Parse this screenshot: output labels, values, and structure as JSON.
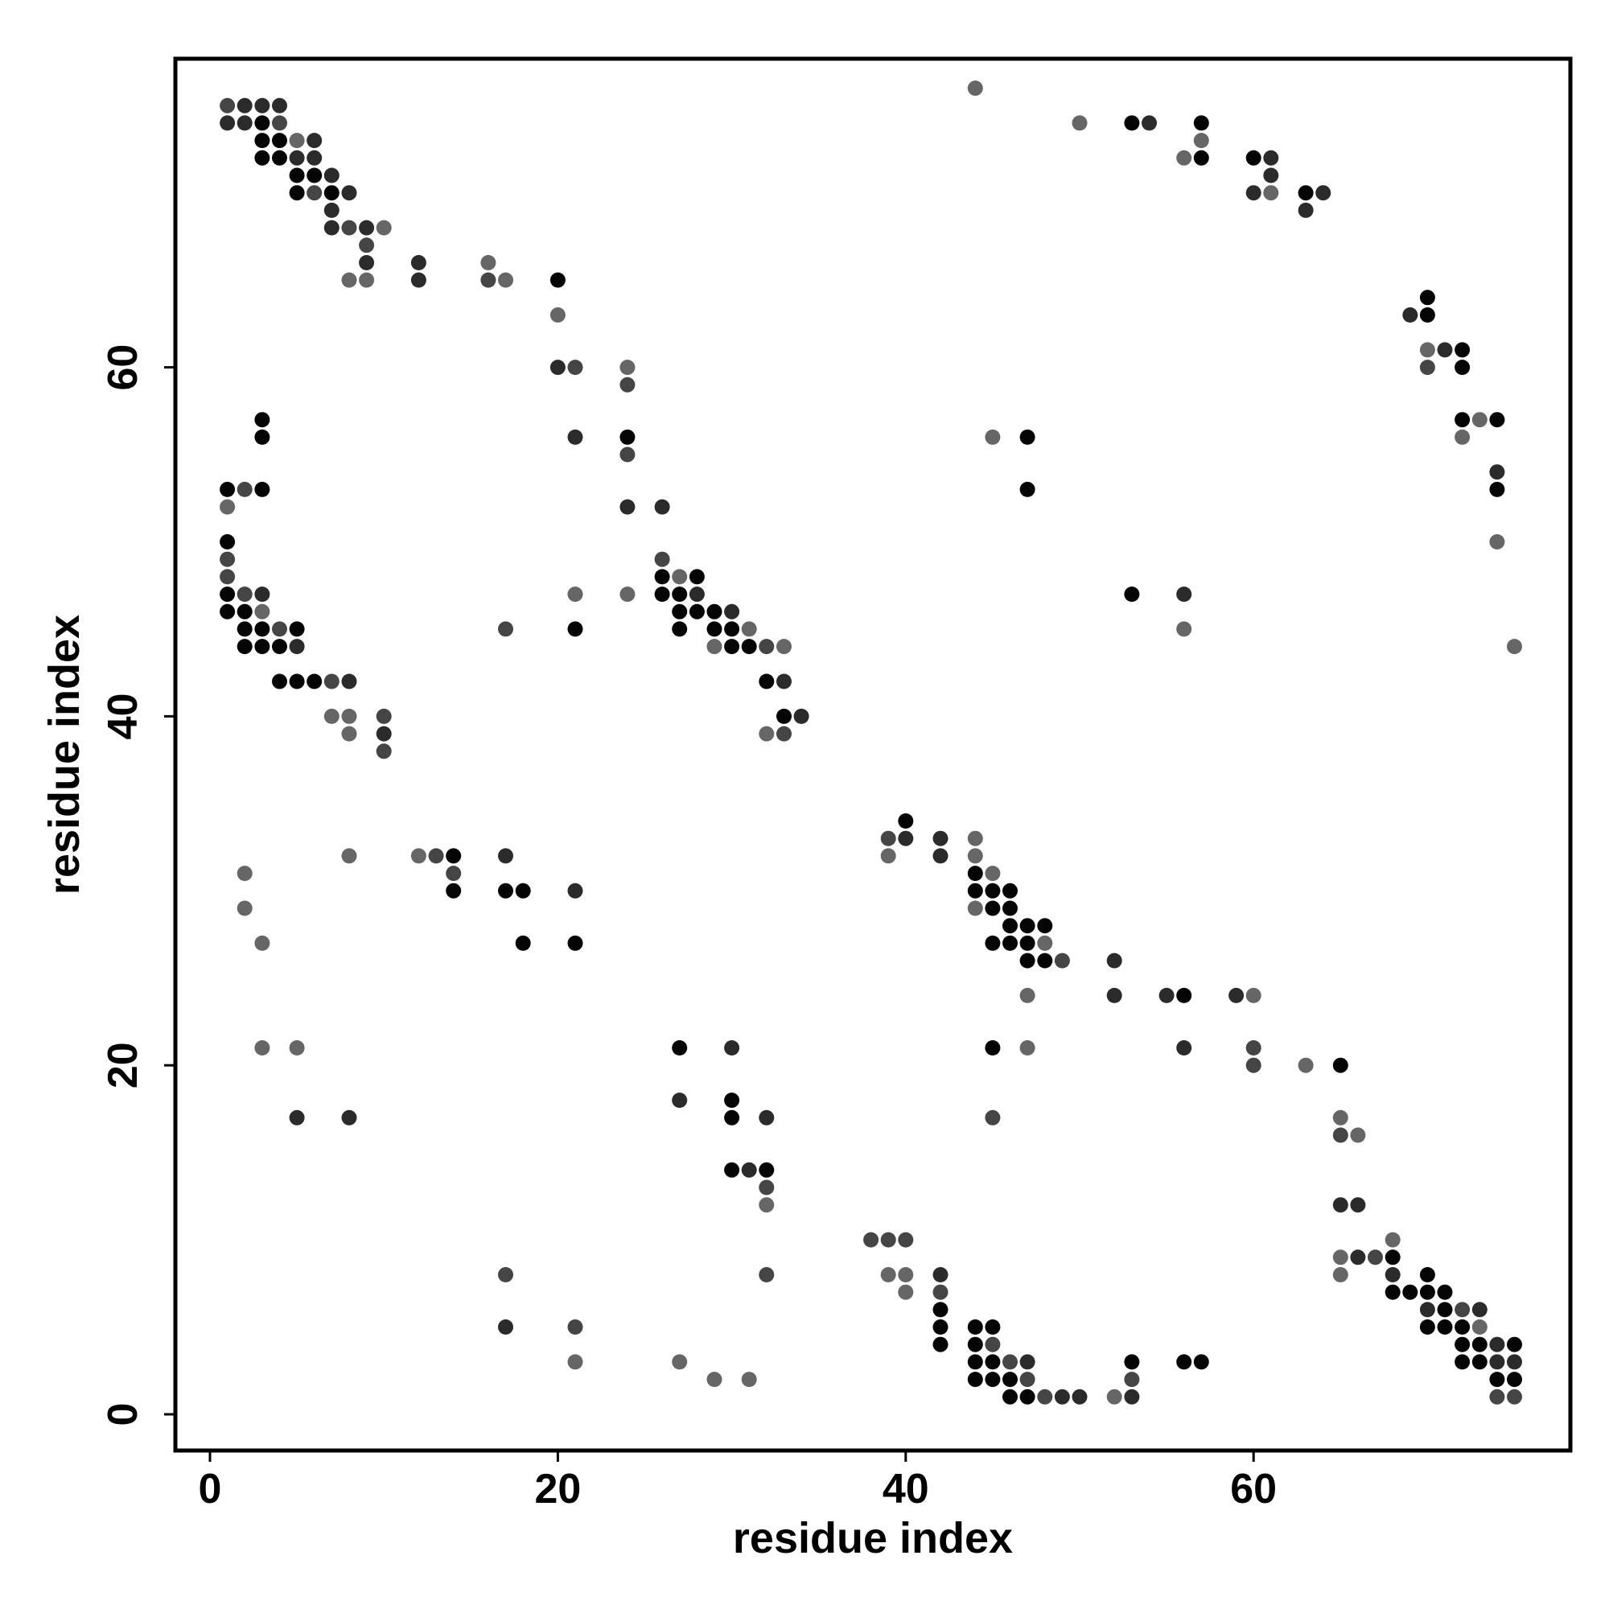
{
  "chart_data": {
    "type": "scatter",
    "title": "",
    "xlabel": "residue index",
    "ylabel": "residue index",
    "xlim": [
      -2,
      78
    ],
    "ylim": [
      -2,
      78
    ],
    "xticks": [
      0,
      20,
      40,
      60
    ],
    "yticks": [
      0,
      20,
      40,
      60
    ],
    "grid": false,
    "legend": "none",
    "marker": "filled circle",
    "shade_levels": {
      "1": "#050505",
      "2": "#2b2b2b",
      "3": "#454545",
      "4": "#666666"
    },
    "points": [
      [
        1,
        75,
        3
      ],
      [
        2,
        75,
        2
      ],
      [
        3,
        75,
        2
      ],
      [
        4,
        75,
        2
      ],
      [
        1,
        74,
        2
      ],
      [
        2,
        74,
        2
      ],
      [
        3,
        74,
        1
      ],
      [
        4,
        74,
        3
      ],
      [
        3,
        73,
        1
      ],
      [
        4,
        73,
        1
      ],
      [
        5,
        73,
        4
      ],
      [
        6,
        73,
        2
      ],
      [
        3,
        72,
        1
      ],
      [
        4,
        72,
        1
      ],
      [
        5,
        72,
        2
      ],
      [
        6,
        72,
        2
      ],
      [
        5,
        71,
        1
      ],
      [
        6,
        71,
        1
      ],
      [
        7,
        71,
        2
      ],
      [
        5,
        70,
        1
      ],
      [
        6,
        70,
        3
      ],
      [
        7,
        70,
        1
      ],
      [
        8,
        70,
        2
      ],
      [
        7,
        69,
        2
      ],
      [
        7,
        68,
        2
      ],
      [
        8,
        68,
        3
      ],
      [
        9,
        68,
        2
      ],
      [
        10,
        68,
        4
      ],
      [
        9,
        67,
        3
      ],
      [
        9,
        66,
        2
      ],
      [
        8,
        65,
        4
      ],
      [
        9,
        65,
        4
      ],
      [
        12,
        66,
        2
      ],
      [
        12,
        65,
        2
      ],
      [
        16,
        66,
        4
      ],
      [
        16,
        65,
        3
      ],
      [
        17,
        65,
        4
      ],
      [
        20,
        65,
        1
      ],
      [
        20,
        63,
        4
      ],
      [
        20,
        60,
        2
      ],
      [
        21,
        60,
        3
      ],
      [
        21,
        56,
        2
      ],
      [
        24,
        60,
        4
      ],
      [
        24,
        59,
        3
      ],
      [
        24,
        56,
        1
      ],
      [
        24,
        55,
        3
      ],
      [
        24,
        52,
        2
      ],
      [
        26,
        52,
        2
      ],
      [
        24,
        47,
        4
      ],
      [
        21,
        47,
        4
      ],
      [
        21,
        45,
        1
      ],
      [
        17,
        45,
        3
      ],
      [
        44,
        76,
        4
      ],
      [
        50,
        74,
        4
      ],
      [
        53,
        74,
        1
      ],
      [
        54,
        74,
        2
      ],
      [
        57,
        74,
        1
      ],
      [
        57,
        73,
        4
      ],
      [
        56,
        72,
        4
      ],
      [
        57,
        72,
        1
      ],
      [
        60,
        72,
        1
      ],
      [
        61,
        72,
        2
      ],
      [
        61,
        71,
        2
      ],
      [
        60,
        70,
        2
      ],
      [
        61,
        70,
        4
      ],
      [
        63,
        70,
        1
      ],
      [
        64,
        70,
        2
      ],
      [
        63,
        69,
        2
      ],
      [
        69,
        63,
        2
      ],
      [
        70,
        63,
        1
      ],
      [
        70,
        64,
        1
      ],
      [
        70,
        61,
        4
      ],
      [
        71,
        61,
        2
      ],
      [
        72,
        61,
        1
      ],
      [
        70,
        60,
        3
      ],
      [
        72,
        60,
        1
      ],
      [
        72,
        57,
        1
      ],
      [
        73,
        57,
        4
      ],
      [
        74,
        57,
        1
      ],
      [
        72,
        56,
        4
      ],
      [
        74,
        54,
        2
      ],
      [
        74,
        53,
        1
      ],
      [
        74,
        50,
        4
      ],
      [
        75,
        44,
        4
      ],
      [
        45,
        56,
        4
      ],
      [
        47,
        56,
        1
      ],
      [
        47,
        53,
        1
      ],
      [
        53,
        47,
        1
      ],
      [
        56,
        47,
        2
      ],
      [
        56,
        45,
        4
      ],
      [
        3,
        57,
        1
      ],
      [
        3,
        56,
        1
      ],
      [
        1,
        53,
        1
      ],
      [
        2,
        53,
        3
      ],
      [
        3,
        53,
        1
      ],
      [
        1,
        52,
        4
      ],
      [
        1,
        50,
        1
      ],
      [
        1,
        49,
        3
      ],
      [
        1,
        48,
        3
      ],
      [
        1,
        47,
        1
      ],
      [
        2,
        47,
        3
      ],
      [
        3,
        47,
        2
      ],
      [
        1,
        46,
        1
      ],
      [
        2,
        46,
        1
      ],
      [
        3,
        46,
        4
      ],
      [
        2,
        45,
        1
      ],
      [
        3,
        45,
        1
      ],
      [
        4,
        45,
        3
      ],
      [
        5,
        45,
        1
      ],
      [
        2,
        44,
        1
      ],
      [
        3,
        44,
        1
      ],
      [
        4,
        44,
        1
      ],
      [
        5,
        44,
        2
      ],
      [
        4,
        42,
        1
      ],
      [
        5,
        42,
        1
      ],
      [
        6,
        42,
        1
      ],
      [
        7,
        42,
        3
      ],
      [
        8,
        42,
        2
      ],
      [
        7,
        40,
        4
      ],
      [
        8,
        40,
        4
      ],
      [
        10,
        40,
        3
      ],
      [
        8,
        39,
        4
      ],
      [
        10,
        39,
        2
      ],
      [
        10,
        38,
        3
      ],
      [
        26,
        49,
        3
      ],
      [
        26,
        48,
        1
      ],
      [
        27,
        48,
        4
      ],
      [
        28,
        48,
        1
      ],
      [
        26,
        47,
        1
      ],
      [
        27,
        47,
        1
      ],
      [
        28,
        47,
        2
      ],
      [
        27,
        46,
        1
      ],
      [
        28,
        46,
        1
      ],
      [
        29,
        46,
        1
      ],
      [
        30,
        46,
        2
      ],
      [
        27,
        45,
        1
      ],
      [
        29,
        45,
        1
      ],
      [
        30,
        45,
        1
      ],
      [
        31,
        45,
        4
      ],
      [
        29,
        44,
        4
      ],
      [
        30,
        44,
        1
      ],
      [
        31,
        44,
        1
      ],
      [
        32,
        44,
        3
      ],
      [
        33,
        44,
        4
      ],
      [
        32,
        42,
        1
      ],
      [
        33,
        42,
        2
      ],
      [
        33,
        40,
        1
      ],
      [
        34,
        40,
        2
      ],
      [
        32,
        39,
        4
      ],
      [
        33,
        39,
        3
      ],
      [
        39,
        33,
        3
      ],
      [
        40,
        34,
        1
      ],
      [
        40,
        33,
        2
      ],
      [
        42,
        33,
        2
      ],
      [
        44,
        33,
        4
      ],
      [
        39,
        32,
        4
      ],
      [
        42,
        32,
        2
      ],
      [
        44,
        32,
        4
      ],
      [
        44,
        31,
        1
      ],
      [
        45,
        31,
        4
      ],
      [
        44,
        30,
        1
      ],
      [
        45,
        30,
        1
      ],
      [
        46,
        30,
        1
      ],
      [
        44,
        29,
        4
      ],
      [
        45,
        29,
        1
      ],
      [
        46,
        29,
        1
      ],
      [
        46,
        28,
        1
      ],
      [
        47,
        28,
        1
      ],
      [
        48,
        28,
        1
      ],
      [
        45,
        27,
        1
      ],
      [
        46,
        27,
        1
      ],
      [
        47,
        27,
        1
      ],
      [
        48,
        27,
        4
      ],
      [
        47,
        26,
        1
      ],
      [
        48,
        26,
        1
      ],
      [
        49,
        26,
        3
      ],
      [
        52,
        26,
        2
      ],
      [
        52,
        24,
        2
      ],
      [
        47,
        24,
        4
      ],
      [
        55,
        24,
        2
      ],
      [
        56,
        24,
        1
      ],
      [
        59,
        24,
        2
      ],
      [
        60,
        24,
        4
      ],
      [
        56,
        21,
        2
      ],
      [
        60,
        21,
        3
      ],
      [
        60,
        20,
        3
      ],
      [
        63,
        20,
        4
      ],
      [
        65,
        20,
        1
      ],
      [
        45,
        21,
        1
      ],
      [
        47,
        21,
        4
      ],
      [
        45,
        17,
        3
      ],
      [
        65,
        17,
        4
      ],
      [
        65,
        16,
        3
      ],
      [
        66,
        16,
        4
      ],
      [
        65,
        12,
        2
      ],
      [
        66,
        12,
        2
      ],
      [
        65,
        9,
        4
      ],
      [
        66,
        9,
        2
      ],
      [
        67,
        9,
        3
      ],
      [
        68,
        10,
        4
      ],
      [
        68,
        9,
        1
      ],
      [
        65,
        8,
        4
      ],
      [
        68,
        8,
        2
      ],
      [
        68,
        7,
        1
      ],
      [
        69,
        7,
        1
      ],
      [
        70,
        8,
        1
      ],
      [
        70,
        7,
        1
      ],
      [
        71,
        7,
        1
      ],
      [
        70,
        6,
        2
      ],
      [
        71,
        6,
        1
      ],
      [
        72,
        6,
        3
      ],
      [
        73,
        6,
        2
      ],
      [
        70,
        5,
        1
      ],
      [
        71,
        5,
        1
      ],
      [
        72,
        5,
        1
      ],
      [
        73,
        5,
        4
      ],
      [
        72,
        4,
        1
      ],
      [
        73,
        4,
        1
      ],
      [
        74,
        4,
        2
      ],
      [
        75,
        4,
        1
      ],
      [
        72,
        3,
        1
      ],
      [
        73,
        3,
        1
      ],
      [
        74,
        3,
        2
      ],
      [
        75,
        3,
        2
      ],
      [
        74,
        2,
        1
      ],
      [
        75,
        2,
        1
      ],
      [
        74,
        1,
        3
      ],
      [
        75,
        1,
        3
      ],
      [
        38,
        10,
        3
      ],
      [
        39,
        10,
        3
      ],
      [
        40,
        10,
        3
      ],
      [
        39,
        8,
        4
      ],
      [
        40,
        8,
        4
      ],
      [
        42,
        8,
        2
      ],
      [
        40,
        7,
        4
      ],
      [
        42,
        7,
        3
      ],
      [
        42,
        6,
        1
      ],
      [
        42,
        5,
        1
      ],
      [
        42,
        4,
        1
      ],
      [
        44,
        5,
        1
      ],
      [
        45,
        5,
        1
      ],
      [
        44,
        4,
        1
      ],
      [
        45,
        4,
        3
      ],
      [
        44,
        3,
        1
      ],
      [
        45,
        3,
        1
      ],
      [
        46,
        3,
        3
      ],
      [
        47,
        3,
        2
      ],
      [
        44,
        2,
        1
      ],
      [
        45,
        2,
        1
      ],
      [
        46,
        2,
        1
      ],
      [
        47,
        2,
        3
      ],
      [
        46,
        1,
        1
      ],
      [
        47,
        1,
        1
      ],
      [
        48,
        1,
        3
      ],
      [
        49,
        1,
        2
      ],
      [
        50,
        1,
        2
      ],
      [
        52,
        1,
        4
      ],
      [
        53,
        1,
        2
      ],
      [
        53,
        2,
        3
      ],
      [
        53,
        3,
        1
      ],
      [
        56,
        3,
        1
      ],
      [
        57,
        3,
        1
      ],
      [
        2,
        31,
        4
      ],
      [
        2,
        29,
        4
      ],
      [
        3,
        27,
        4
      ],
      [
        8,
        32,
        4
      ],
      [
        12,
        32,
        4
      ],
      [
        13,
        32,
        3
      ],
      [
        14,
        32,
        1
      ],
      [
        14,
        31,
        3
      ],
      [
        14,
        30,
        1
      ],
      [
        17,
        32,
        2
      ],
      [
        17,
        30,
        1
      ],
      [
        18,
        30,
        1
      ],
      [
        18,
        27,
        1
      ],
      [
        21,
        30,
        2
      ],
      [
        21,
        27,
        1
      ],
      [
        3,
        21,
        4
      ],
      [
        5,
        21,
        4
      ],
      [
        5,
        17,
        2
      ],
      [
        8,
        17,
        2
      ],
      [
        27,
        21,
        1
      ],
      [
        30,
        21,
        2
      ],
      [
        27,
        18,
        2
      ],
      [
        30,
        18,
        1
      ],
      [
        30,
        17,
        1
      ],
      [
        32,
        17,
        2
      ],
      [
        30,
        14,
        1
      ],
      [
        31,
        14,
        2
      ],
      [
        32,
        14,
        1
      ],
      [
        32,
        13,
        3
      ],
      [
        32,
        12,
        4
      ],
      [
        17,
        8,
        3
      ],
      [
        32,
        8,
        3
      ],
      [
        17,
        5,
        2
      ],
      [
        21,
        5,
        3
      ],
      [
        21,
        3,
        4
      ],
      [
        27,
        3,
        4
      ],
      [
        29,
        2,
        4
      ],
      [
        31,
        2,
        4
      ]
    ]
  }
}
